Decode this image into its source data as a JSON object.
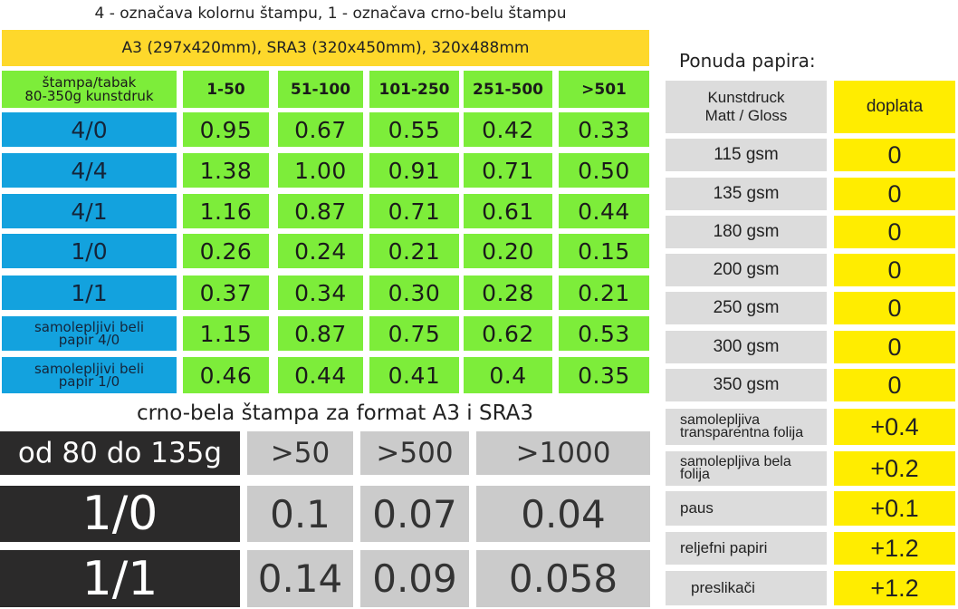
{
  "legend": "4 - označava kolornu štampu, 1 - označava crno-belu štampu",
  "color_table": {
    "banner": "A3 (297x420mm), SRA3 (320x450mm),  320x488mm",
    "header_label_line1": "štampa/tabak",
    "header_label_line2": "80-350g kunstdruk",
    "columns": [
      "1-50",
      "51-100",
      "101-250",
      "251-500",
      ">501"
    ],
    "rows": [
      {
        "label": "4/0",
        "values": [
          "0.95",
          "0.67",
          "0.55",
          "0.42",
          "0.33"
        ]
      },
      {
        "label": "4/4",
        "values": [
          "1.38",
          "1.00",
          "0.91",
          "0.71",
          "0.50"
        ]
      },
      {
        "label": "4/1",
        "values": [
          "1.16",
          "0.87",
          "0.71",
          "0.61",
          "0.44"
        ]
      },
      {
        "label": "1/0",
        "values": [
          "0.26",
          "0.24",
          "0.21",
          "0.20",
          "0.15"
        ]
      },
      {
        "label": "1/1",
        "values": [
          "0.37",
          "0.34",
          "0.30",
          "0.28",
          "0.21"
        ]
      },
      {
        "label_line1": "samolepljivi beli",
        "label_line2": "papir 4/0",
        "values": [
          "1.15",
          "0.87",
          "0.75",
          "0.62",
          "0.53"
        ]
      },
      {
        "label_line1": "samolepljivi beli",
        "label_line2": "papir 1/0",
        "values": [
          "0.46",
          "0.44",
          "0.41",
          "0.4",
          "0.35"
        ]
      }
    ]
  },
  "bw_table": {
    "title": "crno-bela štampa za format A3 i SRA3",
    "header_label": "od 80 do 135g",
    "columns": [
      ">50",
      ">500",
      ">1000"
    ],
    "rows": [
      {
        "label": "1/0",
        "values": [
          "0.1",
          "0.07",
          "0.04"
        ]
      },
      {
        "label": "1/1",
        "values": [
          "0.14",
          "0.09",
          "0.058"
        ]
      }
    ]
  },
  "paper": {
    "title": "Ponuda papira:",
    "header_left_line1": "Kunstdruck",
    "header_left_line2": "Matt / Gloss",
    "header_right": "doplata",
    "rows": [
      {
        "name": "115 gsm",
        "price": "0"
      },
      {
        "name": "135 gsm",
        "price": "0"
      },
      {
        "name": "180 gsm",
        "price": "0"
      },
      {
        "name": "200 gsm",
        "price": "0"
      },
      {
        "name": "250 gsm",
        "price": "0"
      },
      {
        "name": "300 gsm",
        "price": "0"
      },
      {
        "name": "350 gsm",
        "price": "0"
      },
      {
        "name_line1": "samolepljiva",
        "name_line2": "transparentna folija",
        "price": "+0.4"
      },
      {
        "name_line1": "samolepljiva bela",
        "name_line2": "folija",
        "price": "+0.2"
      },
      {
        "name": "paus",
        "price": "+0.1"
      },
      {
        "name": "reljefni papiri",
        "price": "+1.2"
      },
      {
        "name": "preslikači",
        "price": "+1.2"
      }
    ]
  },
  "colors": {
    "banner": "#fed82b",
    "green": "#7ded3a",
    "blue": "#13a2de",
    "dark": "#2b2a2a",
    "gray": "#cbcbcb",
    "light_gray": "#dcdcdc",
    "yellow": "#ffed00"
  }
}
